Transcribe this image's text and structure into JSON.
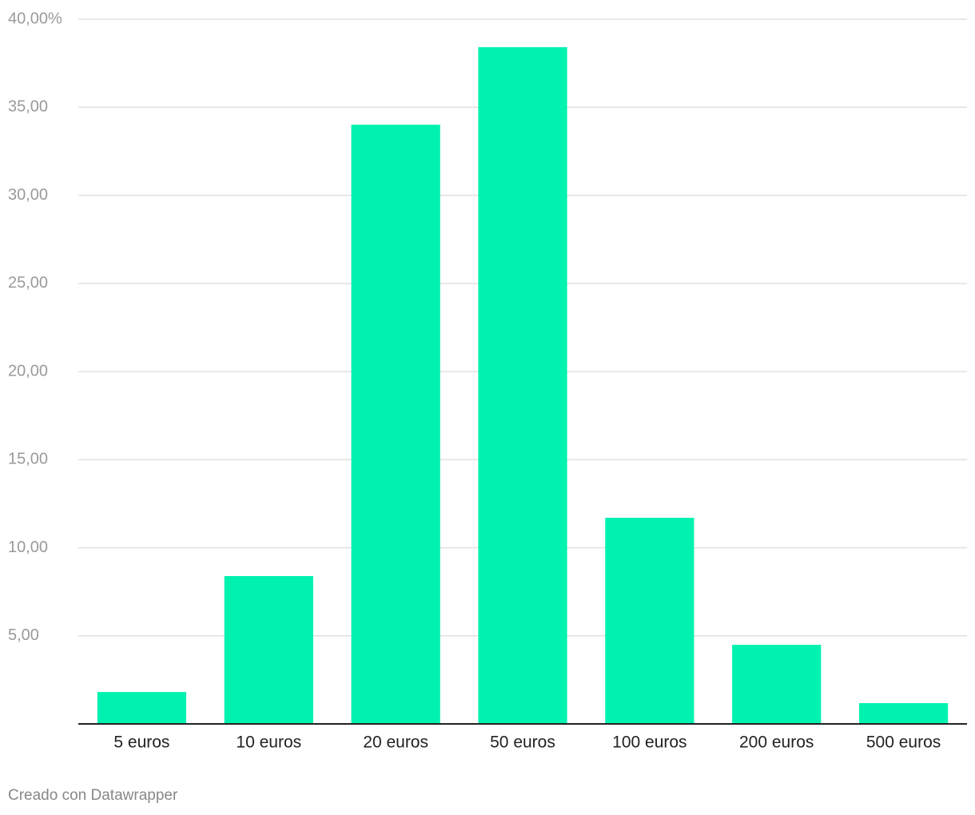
{
  "chart_data": {
    "type": "bar",
    "categories": [
      "5 euros",
      "10 euros",
      "20 euros",
      "50 euros",
      "100 euros",
      "200 euros",
      "500 euros"
    ],
    "values": [
      1.81,
      8.39,
      34.01,
      38.41,
      11.7,
      4.49,
      1.18
    ],
    "color": "#00f2b0",
    "ylim": [
      0,
      40
    ],
    "yticks": [
      {
        "value": 5,
        "label": "5,00"
      },
      {
        "value": 10,
        "label": "10,00"
      },
      {
        "value": 15,
        "label": "15,00"
      },
      {
        "value": 20,
        "label": "20,00"
      },
      {
        "value": 25,
        "label": "25,00"
      },
      {
        "value": 30,
        "label": "30,00"
      },
      {
        "value": 35,
        "label": "35,00"
      },
      {
        "value": 40,
        "label": "40,00%"
      }
    ],
    "grid": true,
    "credit": "Creado con Datawrapper"
  }
}
